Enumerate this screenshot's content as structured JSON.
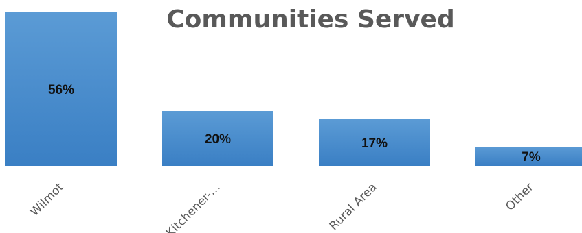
{
  "chart_data": {
    "type": "bar",
    "title": "Communities Served",
    "categories": [
      "Wilmot",
      "Kitchener-...",
      "Rural Area",
      "Other"
    ],
    "values": [
      56,
      20,
      17,
      7
    ],
    "data_labels": [
      "56%",
      "20%",
      "17%",
      "7%"
    ],
    "ylim": [
      0,
      56
    ],
    "xlabel": "",
    "ylabel": "",
    "grid": false,
    "legend": "none",
    "colors": {
      "bar_top": "#5b9bd5",
      "bar_bottom": "#3a7fc4",
      "title": "#595959",
      "category_text": "#595959",
      "label_text": "#111111"
    }
  }
}
